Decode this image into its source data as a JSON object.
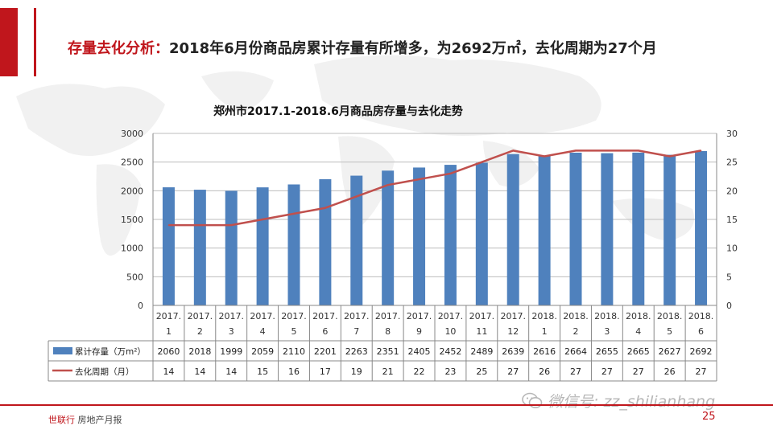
{
  "headline": {
    "label": "存量去化分析：",
    "text": "2018年6月份商品房累计存量有所增多，为2692万㎡，去化周期为27个月"
  },
  "colors": {
    "accent": "#c0161c",
    "bar": "#4f81bd",
    "line": "#c0504d"
  },
  "chart_data": {
    "type": "bar",
    "title": "郑州市2017.1-2018.6月商品房存量与去化走势",
    "categories": [
      [
        "2017.",
        "1"
      ],
      [
        "2017.",
        "2"
      ],
      [
        "2017.",
        "3"
      ],
      [
        "2017.",
        "4"
      ],
      [
        "2017.",
        "5"
      ],
      [
        "2017.",
        "6"
      ],
      [
        "2017.",
        "7"
      ],
      [
        "2017.",
        "8"
      ],
      [
        "2017.",
        "9"
      ],
      [
        "2017.",
        "10"
      ],
      [
        "2017.",
        "11"
      ],
      [
        "2017.",
        "12"
      ],
      [
        "2018.",
        "1"
      ],
      [
        "2018.",
        "2"
      ],
      [
        "2018.",
        "3"
      ],
      [
        "2018.",
        "4"
      ],
      [
        "2018.",
        "5"
      ],
      [
        "2018.",
        "6"
      ]
    ],
    "ylim_left": [
      0,
      3000
    ],
    "yticks_left": [
      0,
      500,
      1000,
      1500,
      2000,
      2500,
      3000
    ],
    "ylim_right": [
      0,
      30
    ],
    "yticks_right": [
      0,
      5,
      10,
      15,
      20,
      25,
      30
    ],
    "grid": true,
    "legend": "data-table",
    "series": [
      {
        "name": "累计存量（万m²）",
        "type": "bar",
        "axis": "left",
        "values": [
          2060,
          2018,
          1999,
          2059,
          2110,
          2201,
          2263,
          2351,
          2405,
          2452,
          2489,
          2639,
          2616,
          2664,
          2655,
          2665,
          2627,
          2692
        ]
      },
      {
        "name": "去化周期（月）",
        "type": "line",
        "axis": "right",
        "values": [
          14,
          14,
          14,
          15,
          16,
          17,
          19,
          21,
          22,
          23,
          25,
          27,
          26,
          27,
          27,
          27,
          26,
          27
        ]
      }
    ]
  },
  "footer": {
    "brand_main": "世联行",
    "brand_rest": " 房地产月报",
    "page_number": "25",
    "watermark": "微信号: zz_shilianhang"
  }
}
